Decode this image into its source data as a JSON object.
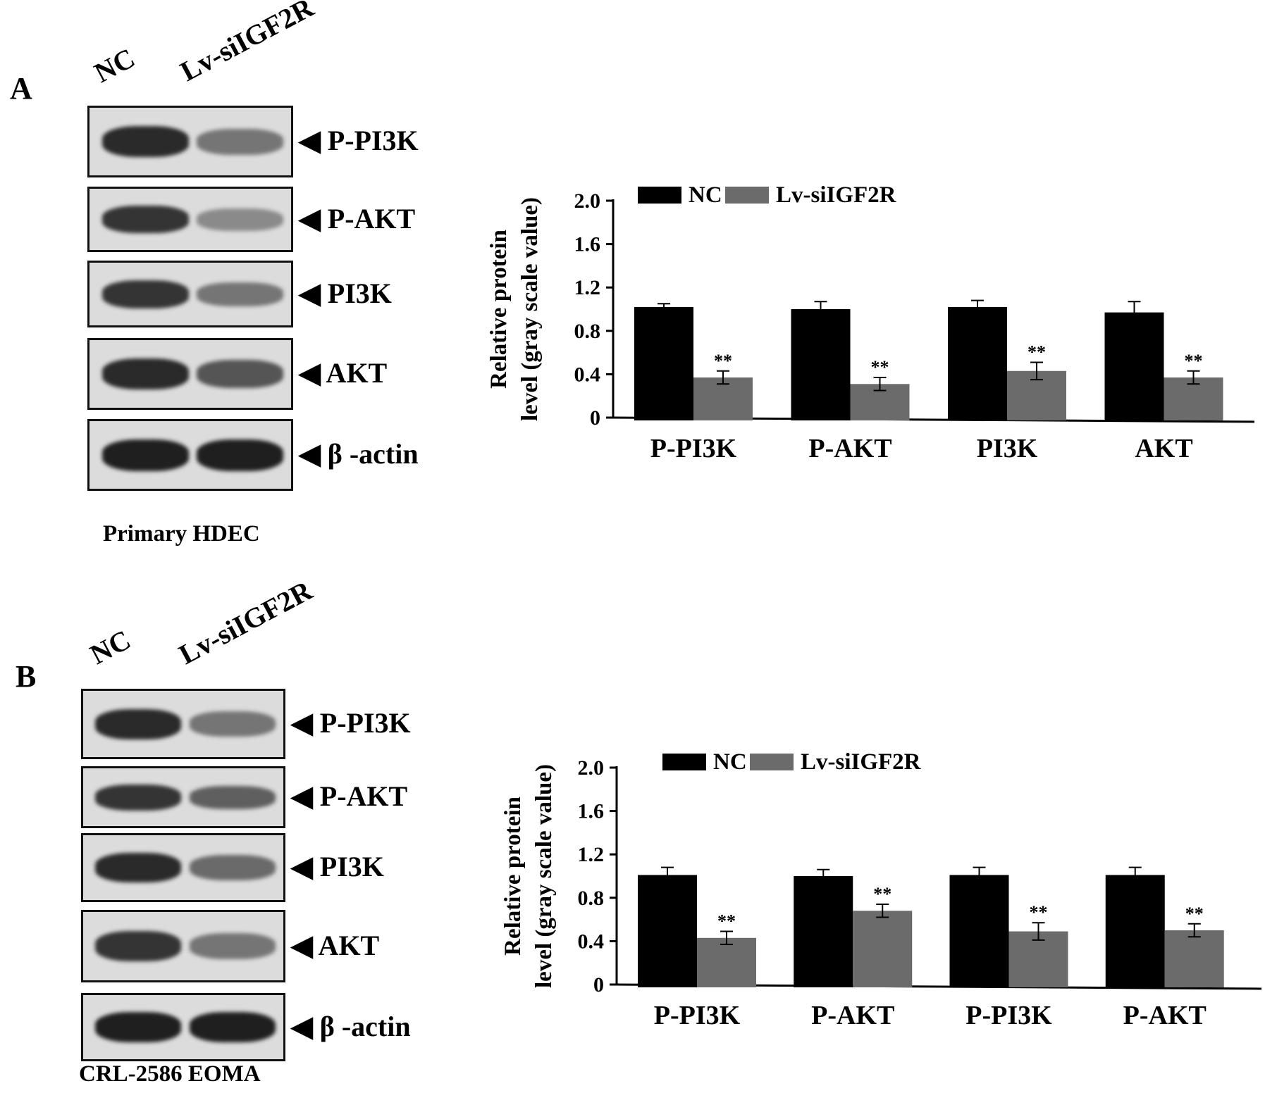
{
  "panels": [
    {
      "letter": "A",
      "lanes": [
        "NC",
        "Lv-siIGF2R"
      ],
      "blots": [
        {
          "label": "P-PI3K",
          "nc_intensity": 0.9,
          "si_intensity": 0.55
        },
        {
          "label": "P-AKT",
          "nc_intensity": 0.85,
          "si_intensity": 0.45
        },
        {
          "label": "PI3K",
          "nc_intensity": 0.85,
          "si_intensity": 0.55
        },
        {
          "label": "AKT",
          "nc_intensity": 0.9,
          "si_intensity": 0.7
        },
        {
          "label": "β -actin",
          "nc_intensity": 0.95,
          "si_intensity": 0.95
        }
      ],
      "caption": "Primary HDEC"
    },
    {
      "letter": "B",
      "lanes": [
        "NC",
        "Lv-siIGF2R"
      ],
      "blots": [
        {
          "label": "P-PI3K",
          "nc_intensity": 0.9,
          "si_intensity": 0.55
        },
        {
          "label": "P-AKT",
          "nc_intensity": 0.85,
          "si_intensity": 0.65
        },
        {
          "label": "PI3K",
          "nc_intensity": 0.9,
          "si_intensity": 0.6
        },
        {
          "label": "AKT",
          "nc_intensity": 0.85,
          "si_intensity": 0.55
        },
        {
          "label": "β -actin",
          "nc_intensity": 0.95,
          "si_intensity": 0.95
        }
      ],
      "caption": "CRL-2586 EOMA"
    }
  ],
  "chart_data": [
    {
      "type": "bar",
      "categories": [
        "P-PI3K",
        "P-AKT",
        "PI3K",
        "AKT"
      ],
      "series": [
        {
          "name": "NC",
          "color": "#000000",
          "values": [
            1.02,
            1.0,
            1.02,
            0.97
          ],
          "errors": [
            0.03,
            0.07,
            0.06,
            0.1
          ]
        },
        {
          "name": "Lv-siIGF2R",
          "color": "#6b6b6b",
          "values": [
            0.37,
            0.31,
            0.43,
            0.37
          ],
          "errors": [
            0.06,
            0.06,
            0.08,
            0.06
          ]
        }
      ],
      "annotations": [
        "**",
        "**",
        "**",
        "**"
      ],
      "ylabel_line1": "Relative protein",
      "ylabel_line2": "level (gray scale value)",
      "yticks": [
        "2.0",
        "1.6",
        "1.2",
        "0.8",
        "0.4",
        "0"
      ],
      "ylim": [
        0,
        2.0
      ],
      "legend": "top-left"
    },
    {
      "type": "bar",
      "categories": [
        "P-PI3K",
        "P-AKT",
        "P-PI3K",
        "P-AKT"
      ],
      "series": [
        {
          "name": "NC",
          "color": "#000000",
          "values": [
            1.01,
            1.0,
            1.01,
            1.01
          ],
          "errors": [
            0.07,
            0.06,
            0.07,
            0.07
          ]
        },
        {
          "name": "Lv-siIGF2R",
          "color": "#6b6b6b",
          "values": [
            0.43,
            0.68,
            0.49,
            0.5
          ],
          "errors": [
            0.06,
            0.06,
            0.08,
            0.06
          ]
        }
      ],
      "annotations": [
        "**",
        "**",
        "**",
        "**"
      ],
      "ylabel_line1": "Relative protein",
      "ylabel_line2": "level (gray scale value)",
      "yticks": [
        "2.0",
        "1.6",
        "1.2",
        "0.8",
        "0.4",
        "0"
      ],
      "ylim": [
        0,
        2.0
      ],
      "legend": "top-left"
    }
  ]
}
